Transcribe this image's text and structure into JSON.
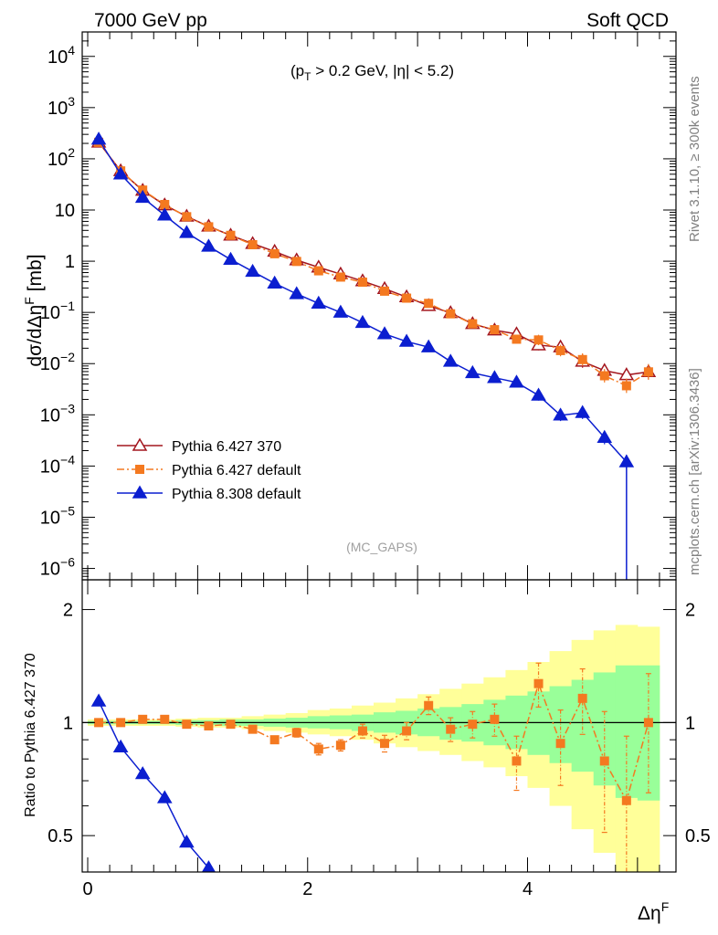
{
  "header": {
    "left": "7000 GeV pp",
    "right": "Soft QCD"
  },
  "side_texts": {
    "rivet": "Rivet 3.1.10, ≥ 300k events",
    "mcplots": "mcplots.cern.ch [arXiv:1306.3436]"
  },
  "chart_data": [
    {
      "type": "line",
      "panel": "main",
      "ylabel": "dσ/dΔη^F [mb]",
      "y_scale": "log",
      "ylim": [
        6e-07,
        30000.0
      ],
      "xlim": [
        -0.05,
        5.35
      ],
      "annotation": "(p_T > 0.2 GeV, |η| < 5.2)",
      "watermark": "(MC_GAPS)",
      "legend_placement": "bottom-left",
      "x": [
        0.1,
        0.3,
        0.5,
        0.7,
        0.9,
        1.1,
        1.3,
        1.5,
        1.7,
        1.9,
        2.1,
        2.3,
        2.5,
        2.7,
        2.9,
        3.1,
        3.3,
        3.5,
        3.7,
        3.9,
        4.1,
        4.3,
        4.5,
        4.7,
        4.9,
        5.1
      ],
      "series": [
        {
          "name": "Pythia 6.427 370",
          "color": "#a3161e",
          "marker": "open-triangle",
          "line": "solid",
          "values": [
            210,
            58,
            24,
            12.5,
            7.5,
            4.8,
            3.2,
            2.2,
            1.55,
            1.05,
            0.76,
            0.56,
            0.41,
            0.29,
            0.2,
            0.135,
            0.098,
            0.06,
            0.045,
            0.038,
            0.023,
            0.021,
            0.011,
            0.0073,
            0.006,
            0.0069
          ]
        },
        {
          "name": "Pythia 6.427 default",
          "color": "#f47920",
          "marker": "square",
          "line": "dashdot",
          "values": [
            210,
            58,
            24.5,
            12.8,
            7.4,
            4.7,
            3.2,
            2.1,
            1.4,
            0.99,
            0.65,
            0.49,
            0.39,
            0.26,
            0.19,
            0.15,
            0.094,
            0.06,
            0.046,
            0.03,
            0.029,
            0.018,
            0.012,
            0.0058,
            0.0037,
            0.0069
          ]
        },
        {
          "name": "Pythia 8.308 default",
          "color": "#0b1ed0",
          "marker": "filled-triangle",
          "line": "solid",
          "values": [
            240,
            50,
            17.5,
            7.9,
            3.6,
            1.95,
            1.08,
            0.63,
            0.37,
            0.23,
            0.15,
            0.1,
            0.063,
            0.038,
            0.027,
            0.021,
            0.011,
            0.0066,
            0.0053,
            0.0043,
            0.0024,
            0.00098,
            0.0011,
            0.00036,
            0.00012,
            null
          ]
        }
      ]
    },
    {
      "type": "line",
      "panel": "ratio",
      "ylabel": "Ratio to Pythia 6.427 370",
      "xlabel": "Δη^F",
      "ylim": [
        0.4,
        2.4
      ],
      "xlim": [
        -0.05,
        5.35
      ],
      "x_ticks": [
        0,
        2,
        4
      ],
      "y_ticks": [
        0.5,
        1,
        2
      ],
      "band_edges": [
        0,
        0.2,
        0.4,
        0.6,
        0.8,
        1.0,
        1.2,
        1.4,
        1.6,
        1.8,
        2.0,
        2.2,
        2.4,
        2.6,
        2.8,
        3.0,
        3.2,
        3.4,
        3.6,
        3.8,
        4.0,
        4.2,
        4.4,
        4.6,
        4.8,
        5.0,
        5.2
      ],
      "band_yellow": [
        [
          0.98,
          1.02
        ],
        [
          0.98,
          1.02
        ],
        [
          0.98,
          1.02
        ],
        [
          0.98,
          1.02
        ],
        [
          0.975,
          1.025
        ],
        [
          0.97,
          1.03
        ],
        [
          0.97,
          1.03
        ],
        [
          0.96,
          1.04
        ],
        [
          0.95,
          1.05
        ],
        [
          0.94,
          1.06
        ],
        [
          0.93,
          1.08
        ],
        [
          0.92,
          1.09
        ],
        [
          0.9,
          1.11
        ],
        [
          0.88,
          1.13
        ],
        [
          0.86,
          1.16
        ],
        [
          0.84,
          1.19
        ],
        [
          0.82,
          1.23
        ],
        [
          0.79,
          1.27
        ],
        [
          0.76,
          1.32
        ],
        [
          0.72,
          1.38
        ],
        [
          0.67,
          1.45
        ],
        [
          0.6,
          1.55
        ],
        [
          0.52,
          1.66
        ],
        [
          0.45,
          1.76
        ],
        [
          0.4,
          1.82
        ],
        [
          0.4,
          1.8
        ]
      ],
      "band_green": [
        [
          0.99,
          1.01
        ],
        [
          0.99,
          1.01
        ],
        [
          0.99,
          1.01
        ],
        [
          0.99,
          1.01
        ],
        [
          0.985,
          1.015
        ],
        [
          0.985,
          1.015
        ],
        [
          0.98,
          1.02
        ],
        [
          0.98,
          1.02
        ],
        [
          0.975,
          1.025
        ],
        [
          0.97,
          1.03
        ],
        [
          0.965,
          1.04
        ],
        [
          0.96,
          1.045
        ],
        [
          0.95,
          1.05
        ],
        [
          0.94,
          1.065
        ],
        [
          0.93,
          1.075
        ],
        [
          0.92,
          1.09
        ],
        [
          0.9,
          1.1
        ],
        [
          0.89,
          1.12
        ],
        [
          0.87,
          1.15
        ],
        [
          0.85,
          1.18
        ],
        [
          0.82,
          1.21
        ],
        [
          0.78,
          1.25
        ],
        [
          0.74,
          1.3
        ],
        [
          0.68,
          1.36
        ],
        [
          0.63,
          1.42
        ],
        [
          0.62,
          1.42
        ]
      ],
      "series": [
        {
          "name": "Pythia 6.427 default",
          "color": "#f47920",
          "marker": "square",
          "line": "dashdot",
          "x": [
            0.1,
            0.3,
            0.5,
            0.7,
            0.9,
            1.1,
            1.3,
            1.5,
            1.7,
            1.9,
            2.1,
            2.3,
            2.5,
            2.7,
            2.9,
            3.1,
            3.3,
            3.5,
            3.7,
            3.9,
            4.1,
            4.3,
            4.5,
            4.7,
            4.9,
            5.1
          ],
          "values": [
            1.0,
            1.0,
            1.02,
            1.02,
            0.99,
            0.98,
            0.99,
            0.96,
            0.9,
            0.94,
            0.85,
            0.87,
            0.95,
            0.88,
            0.95,
            1.11,
            0.96,
            0.99,
            1.02,
            0.79,
            1.27,
            0.88,
            1.16,
            0.79,
            0.62,
            1.0
          ],
          "errors": [
            0.005,
            0.005,
            0.01,
            0.01,
            0.01,
            0.012,
            0.012,
            0.015,
            0.02,
            0.025,
            0.03,
            0.03,
            0.04,
            0.045,
            0.05,
            0.06,
            0.07,
            0.08,
            0.1,
            0.13,
            0.17,
            0.2,
            0.23,
            0.28,
            0.3,
            0.35
          ]
        },
        {
          "name": "Pythia 8.308 default",
          "color": "#0b1ed0",
          "marker": "filled-triangle",
          "line": "solid",
          "x": [
            0.1,
            0.3,
            0.5,
            0.7,
            0.9,
            1.1,
            1.3
          ],
          "values": [
            1.14,
            0.86,
            0.73,
            0.63,
            0.48,
            0.41,
            0.34
          ]
        }
      ]
    }
  ]
}
